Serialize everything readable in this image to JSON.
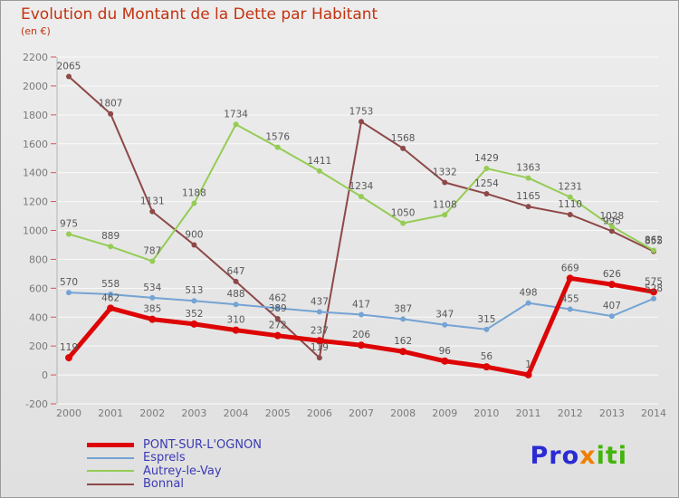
{
  "title": {
    "text": "Evolution du Montant de la Dette par Habitant",
    "subtitle": "(en €)",
    "color": "#c33310"
  },
  "chart_data": {
    "type": "line",
    "title": "Evolution du Montant de la Dette par Habitant",
    "subtitle": "(en €)",
    "x": [
      2000,
      2001,
      2002,
      2003,
      2004,
      2005,
      2006,
      2007,
      2008,
      2009,
      2010,
      2011,
      2012,
      2013,
      2014
    ],
    "ylim": [
      -200,
      2200
    ],
    "ytick_step": 200,
    "y_ticks": [
      -200,
      0,
      200,
      400,
      600,
      800,
      1000,
      1200,
      1400,
      1600,
      1800,
      2000,
      2200
    ],
    "grid": "horizontal",
    "legend_position": "bottom-left",
    "series": [
      {
        "name": "PONT-SUR-L'OGNON",
        "color": "#dd0505",
        "stroke_width": 5,
        "values": [
          119,
          462,
          385,
          352,
          310,
          272,
          237,
          206,
          162,
          96,
          56,
          1,
          669,
          626,
          575
        ]
      },
      {
        "name": "Esprels",
        "color": "#74a3d4",
        "stroke_width": 2,
        "values": [
          570,
          558,
          534,
          513,
          488,
          462,
          437,
          417,
          387,
          347,
          315,
          498,
          455,
          407,
          528
        ]
      },
      {
        "name": "Autrey-le-Vay",
        "color": "#95cc55",
        "stroke_width": 2,
        "values": [
          975,
          889,
          787,
          1188,
          1734,
          1576,
          1411,
          1234,
          1050,
          1108,
          1429,
          1363,
          1231,
          1028,
          862
        ]
      },
      {
        "name": "Bonnal",
        "color": "#8e4848",
        "stroke_width": 2,
        "values": [
          2065,
          1807,
          1131,
          900,
          647,
          389,
          119,
          1753,
          1568,
          1332,
          1254,
          1165,
          1110,
          995,
          855
        ]
      }
    ]
  },
  "legend": {
    "text_color": "#3a3ab4",
    "items": [
      "PONT-SUR-L'OGNON",
      "Esprels",
      "Autrey-le-Vay",
      "Bonnal"
    ]
  },
  "logo": {
    "parts": [
      {
        "text": "Pro",
        "color": "#2b2bd4"
      },
      {
        "text": "x",
        "color": "#f07f00"
      },
      {
        "text": "iti",
        "color": "#43b40b"
      }
    ]
  }
}
